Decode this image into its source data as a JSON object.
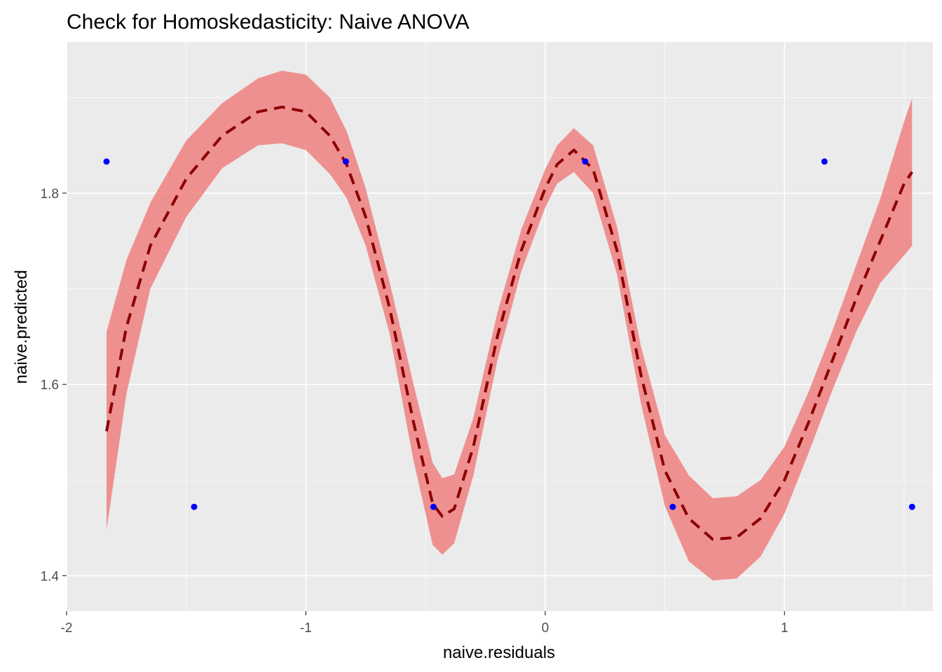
{
  "chart_data": {
    "type": "scatter",
    "title": "Check for Homoskedasticity: Naive ANOVA",
    "xlabel": "naive.residuals",
    "ylabel": "naive.predicted",
    "xlim": [
      -2.0,
      1.62
    ],
    "ylim": [
      1.363,
      1.958
    ],
    "x_ticks": [
      -2,
      -1,
      0,
      1
    ],
    "x_tick_labels": [
      "-2",
      "-1",
      "0",
      "1"
    ],
    "y_ticks": [
      1.4,
      1.6,
      1.8
    ],
    "y_tick_labels": [
      "1.4",
      "1.6",
      "1.8"
    ],
    "grid": true,
    "legend": "none",
    "colors": {
      "panel": "#ebebeb",
      "grid": "#ffffff",
      "points": "#0000ff",
      "smooth_line": "#8b0000",
      "ribbon": "#f08080"
    },
    "points": {
      "x": [
        -1.833,
        -1.467,
        -0.833,
        -0.467,
        0.167,
        0.533,
        1.167,
        1.533
      ],
      "y": [
        1.833,
        1.472,
        1.833,
        1.472,
        1.833,
        1.472,
        1.833,
        1.472
      ]
    },
    "smooth": {
      "x": [
        -1.833,
        -1.75,
        -1.65,
        -1.5,
        -1.35,
        -1.2,
        -1.1,
        -1.0,
        -0.9,
        -0.83,
        -0.75,
        -0.65,
        -0.55,
        -0.47,
        -0.43,
        -0.38,
        -0.3,
        -0.2,
        -0.1,
        0.0,
        0.05,
        0.12,
        0.2,
        0.3,
        0.4,
        0.5,
        0.6,
        0.7,
        0.8,
        0.9,
        1.0,
        1.1,
        1.2,
        1.3,
        1.4,
        1.5,
        1.533
      ],
      "y": [
        1.551,
        1.66,
        1.745,
        1.815,
        1.86,
        1.885,
        1.89,
        1.885,
        1.86,
        1.83,
        1.775,
        1.68,
        1.56,
        1.475,
        1.462,
        1.47,
        1.535,
        1.65,
        1.74,
        1.805,
        1.83,
        1.845,
        1.825,
        1.74,
        1.61,
        1.51,
        1.46,
        1.438,
        1.44,
        1.46,
        1.5,
        1.56,
        1.625,
        1.69,
        1.75,
        1.81,
        1.822
      ],
      "ci_lower": [
        1.448,
        1.59,
        1.7,
        1.775,
        1.826,
        1.85,
        1.852,
        1.845,
        1.82,
        1.795,
        1.745,
        1.653,
        1.52,
        1.432,
        1.422,
        1.434,
        1.505,
        1.625,
        1.718,
        1.785,
        1.81,
        1.822,
        1.8,
        1.715,
        1.58,
        1.473,
        1.415,
        1.395,
        1.397,
        1.42,
        1.465,
        1.528,
        1.594,
        1.655,
        1.706,
        1.735,
        1.745
      ],
      "ci_upper": [
        1.655,
        1.73,
        1.79,
        1.855,
        1.894,
        1.92,
        1.928,
        1.924,
        1.9,
        1.865,
        1.805,
        1.707,
        1.6,
        1.518,
        1.502,
        1.506,
        1.565,
        1.675,
        1.762,
        1.825,
        1.85,
        1.868,
        1.85,
        1.765,
        1.64,
        1.547,
        1.505,
        1.481,
        1.483,
        1.5,
        1.535,
        1.592,
        1.656,
        1.725,
        1.794,
        1.875,
        1.899
      ]
    }
  }
}
